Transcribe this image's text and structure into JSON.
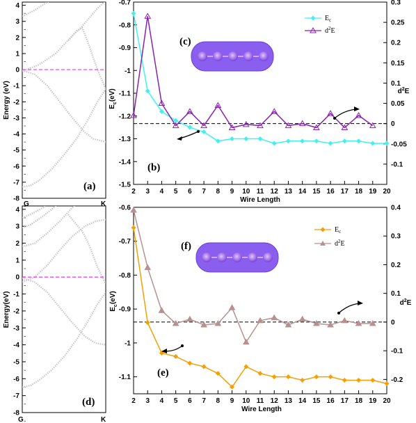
{
  "chart_data": [
    {
      "panel": "(a)",
      "type": "line",
      "ylabel": "Energy (eV)",
      "xticks": [
        "G",
        "K"
      ],
      "yticks": [
        "4",
        "3",
        "2",
        "1",
        "0",
        "-1",
        "-2",
        "-3",
        "-4",
        "-5",
        "-6",
        "-7",
        "-8"
      ],
      "ylim": [
        -8,
        4.2
      ],
      "fermi_level": 0,
      "bands": [
        {
          "x": [
            0,
            0.15,
            0.3,
            0.45,
            0.6,
            0.75,
            0.82,
            0.9,
            1.0
          ],
          "y": [
            3.3,
            3.7,
            4.2,
            4.6,
            5.0,
            5.4,
            5.6,
            5.8,
            6.0
          ]
        },
        {
          "x": [
            0,
            0.2,
            0.4,
            0.6,
            0.7,
            0.8,
            0.9,
            1.0
          ],
          "y": [
            -0.1,
            0.3,
            1.0,
            2.1,
            2.6,
            3.2,
            3.8,
            4.3
          ]
        },
        {
          "x": [
            0.55,
            0.65,
            0.72,
            0.8,
            0.9,
            1.0
          ],
          "y": [
            1.8,
            2.4,
            2.6,
            1.5,
            0.0,
            -1.2
          ]
        },
        {
          "x": [
            0,
            0.15,
            0.3,
            0.45,
            0.6,
            0.75,
            0.85,
            1.0
          ],
          "y": [
            -0.05,
            -0.3,
            -1.0,
            -2.0,
            -3.0,
            -3.9,
            -4.3,
            -4.5
          ]
        },
        {
          "x": [
            0,
            0.1,
            0.2,
            0.35,
            0.5,
            0.65,
            0.8,
            0.9,
            1.0
          ],
          "y": [
            -7.3,
            -7.2,
            -6.9,
            -6.2,
            -5.3,
            -4.3,
            -3.0,
            -2.0,
            -1.2
          ]
        }
      ]
    },
    {
      "panel": "(b)",
      "type": "line",
      "xlabel": "Wire Length",
      "ylabel": "Ec (eV)",
      "y2label": "d2E",
      "xlim": [
        2,
        20
      ],
      "ylim": [
        -1.5,
        -0.7
      ],
      "y2lim": [
        -0.15,
        0.3
      ],
      "inset_label": "(c)",
      "series": [
        {
          "name": "Ec",
          "axis": "left",
          "color": "#3ff2f2",
          "marker": "diamond",
          "x": [
            2,
            3,
            4,
            5,
            6,
            7,
            8,
            9,
            10,
            11,
            12,
            13,
            14,
            15,
            16,
            17,
            18,
            19,
            20
          ],
          "values": [
            -0.75,
            -1.09,
            -1.18,
            -1.22,
            -1.25,
            -1.27,
            -1.31,
            -1.3,
            -1.3,
            -1.3,
            -1.32,
            -1.31,
            -1.31,
            -1.31,
            -1.32,
            -1.31,
            -1.31,
            -1.32,
            -1.32
          ]
        },
        {
          "name": "d2E",
          "axis": "right",
          "color": "#8b1fb0",
          "marker": "triangle",
          "x": [
            2,
            3,
            4,
            5,
            6,
            7,
            8,
            9,
            10,
            11,
            12,
            13,
            14,
            15,
            16,
            17,
            18,
            19
          ],
          "values": [
            0.02,
            0.265,
            0.05,
            -0.005,
            0.03,
            -0.005,
            0.045,
            -0.01,
            -0.002,
            -0.005,
            0.03,
            -0.005,
            0.0,
            -0.01,
            0.025,
            -0.01,
            0.02,
            -0.005
          ]
        }
      ]
    },
    {
      "panel": "(d)",
      "type": "line",
      "ylabel": "Energy(eV)",
      "xticks": [
        "G",
        "K"
      ],
      "yticks": [
        "4",
        "3",
        "2",
        "1",
        "0",
        "-1",
        "-2",
        "-3",
        "-4",
        "-5",
        "-6",
        "-7",
        "-8"
      ],
      "ylim": [
        -8,
        4.2
      ],
      "fermi_level": 0,
      "bands": [
        {
          "x": [
            0,
            0.1,
            0.25,
            0.4,
            0.55,
            0.7,
            0.85,
            1.0
          ],
          "y": [
            3.5,
            3.7,
            4.1,
            4.6,
            5.0,
            5.3,
            5.5,
            5.6
          ]
        },
        {
          "x": [
            0,
            0.1,
            0.25,
            0.4,
            0.55,
            0.7,
            0.85,
            1.0
          ],
          "y": [
            2.9,
            3.1,
            3.6,
            4.2,
            4.8,
            5.3,
            5.6,
            5.8
          ]
        },
        {
          "x": [
            0,
            0.15,
            0.3,
            0.45,
            0.6,
            0.75,
            0.9,
            1.0
          ],
          "y": [
            1.8,
            2.0,
            2.6,
            3.3,
            4.1,
            4.8,
            5.3,
            5.5
          ]
        },
        {
          "x": [
            0,
            0.15,
            0.3,
            0.45,
            0.6,
            0.75,
            0.88,
            1.0
          ],
          "y": [
            -0.3,
            0.0,
            0.7,
            1.6,
            2.4,
            3.0,
            3.3,
            3.4
          ]
        },
        {
          "x": [
            0.55,
            0.65,
            0.72,
            0.8,
            0.9,
            1.0
          ],
          "y": [
            3.7,
            3.1,
            2.7,
            1.9,
            0.6,
            -0.4
          ]
        },
        {
          "x": [
            0,
            0.15,
            0.3,
            0.45,
            0.6,
            0.75,
            0.88,
            1.0
          ],
          "y": [
            -0.05,
            -0.3,
            -0.9,
            -1.8,
            -2.7,
            -3.5,
            -3.9,
            -4.0
          ]
        },
        {
          "x": [
            0,
            0.1,
            0.2,
            0.35,
            0.5,
            0.65,
            0.8,
            0.9,
            1.0
          ],
          "y": [
            -6.5,
            -6.4,
            -6.1,
            -5.5,
            -4.7,
            -3.7,
            -2.5,
            -1.6,
            -0.9
          ]
        }
      ]
    },
    {
      "panel": "(e)",
      "type": "line",
      "xlabel": "Wire Length",
      "ylabel": "Ec (eV)",
      "y2label": "d2E",
      "xlim": [
        2,
        20
      ],
      "ylim": [
        -1.15,
        -0.6
      ],
      "y2lim": [
        -0.25,
        0.4
      ],
      "inset_label": "(f)",
      "series": [
        {
          "name": "Ec",
          "axis": "left",
          "color": "#f5a000",
          "marker": "diamond",
          "x": [
            2,
            3,
            4,
            5,
            6,
            7,
            8,
            9,
            10,
            11,
            12,
            13,
            14,
            15,
            16,
            17,
            18,
            19,
            20
          ],
          "values": [
            -0.66,
            -0.94,
            -1.03,
            -1.04,
            -1.06,
            -1.07,
            -1.09,
            -1.13,
            -1.07,
            -1.09,
            -1.1,
            -1.1,
            -1.11,
            -1.1,
            -1.1,
            -1.11,
            -1.11,
            -1.11,
            -1.12
          ]
        },
        {
          "name": "d2E",
          "axis": "right",
          "color": "#b89090",
          "marker": "triangle",
          "x": [
            2,
            3,
            4,
            5,
            6,
            7,
            8,
            9,
            10,
            11,
            12,
            13,
            14,
            15,
            16,
            17,
            18,
            19
          ],
          "values": [
            0.39,
            0.19,
            0.04,
            -0.005,
            0.01,
            -0.01,
            -0.005,
            0.05,
            -0.07,
            0.005,
            0.015,
            -0.01,
            0.01,
            -0.005,
            -0.01,
            0.005,
            -0.005,
            -0.005
          ]
        }
      ]
    }
  ],
  "labels": {
    "a": "(a)",
    "b": "(b)",
    "c": "(c)",
    "d": "(d)",
    "e": "(e)",
    "f": "(f)",
    "energy_a": "Energy (eV)",
    "energy_d": "Energy(eV)",
    "wire_length": "Wire Length",
    "ec_main": "E",
    "ec_sub": "c",
    "ec_unit": "(eV)",
    "d2e_main": "d",
    "d2e_sup": "2",
    "d2e_end": "E",
    "legend_ec_main": "E",
    "legend_ec_sub": "c",
    "legend_d2e_main": "d",
    "legend_d2e_sup": "2",
    "legend_d2e_end": "E"
  },
  "colors": {
    "fermi": "#e040e0",
    "band": "#c8c8c8",
    "hline": "#000000",
    "inset_fill": "#8a5ff0"
  }
}
